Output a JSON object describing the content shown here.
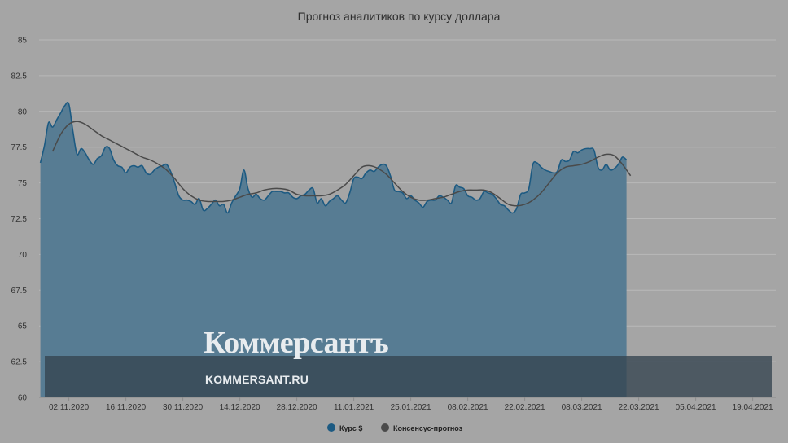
{
  "chart_data": {
    "type": "area",
    "title": "Прогноз аналитиков по курсу доллара",
    "xlabel": "",
    "ylabel": "",
    "ylim": [
      60,
      85
    ],
    "yticks": [
      "60",
      "62.5",
      "65",
      "67.5",
      "70",
      "72.5",
      "75",
      "77.5",
      "80",
      "82.5",
      "85"
    ],
    "xticks": [
      {
        "label": "02.11.2020",
        "x": 6
      },
      {
        "label": "16.11.2020",
        "x": 20
      },
      {
        "label": "30.11.2020",
        "x": 34
      },
      {
        "label": "14.12.2020",
        "x": 48
      },
      {
        "label": "28.12.2020",
        "x": 62
      },
      {
        "label": "11.01.2021",
        "x": 76
      },
      {
        "label": "25.01.2021",
        "x": 90
      },
      {
        "label": "08.02.2021",
        "x": 104
      },
      {
        "label": "22.02.2021",
        "x": 118
      },
      {
        "label": "08.03.2021",
        "x": 132
      },
      {
        "label": "22.03.2021",
        "x": 146
      },
      {
        "label": "05.04.2021",
        "x": 160
      },
      {
        "label": "19.04.2021",
        "x": 174
      }
    ],
    "grid": true,
    "legend_position": "bottom",
    "series": [
      {
        "name": "Курс $",
        "style": "area",
        "color": "#1c5a82",
        "points": [
          [
            -1,
            76.4
          ],
          [
            0,
            77.6
          ],
          [
            1,
            79.2
          ],
          [
            2,
            78.9
          ],
          [
            3,
            79.4
          ],
          [
            4,
            79.9
          ],
          [
            5,
            80.4
          ],
          [
            6,
            80.5
          ],
          [
            7,
            78.6
          ],
          [
            8,
            77.0
          ],
          [
            9,
            77.4
          ],
          [
            10,
            77.1
          ],
          [
            11,
            76.6
          ],
          [
            12,
            76.3
          ],
          [
            13,
            76.7
          ],
          [
            14,
            76.9
          ],
          [
            15,
            77.5
          ],
          [
            16,
            77.4
          ],
          [
            17,
            76.6
          ],
          [
            18,
            76.2
          ],
          [
            19,
            76.1
          ],
          [
            20,
            75.7
          ],
          [
            21,
            76.1
          ],
          [
            22,
            76.2
          ],
          [
            23,
            76.1
          ],
          [
            24,
            76.2
          ],
          [
            25,
            75.7
          ],
          [
            26,
            75.6
          ],
          [
            27,
            75.9
          ],
          [
            28,
            76.1
          ],
          [
            29,
            76.2
          ],
          [
            30,
            76.3
          ],
          [
            31,
            75.8
          ],
          [
            32,
            75.0
          ],
          [
            33,
            74.1
          ],
          [
            34,
            73.8
          ],
          [
            35,
            73.8
          ],
          [
            36,
            73.7
          ],
          [
            37,
            73.5
          ],
          [
            38,
            73.9
          ],
          [
            39,
            73.1
          ],
          [
            40,
            73.2
          ],
          [
            41,
            73.5
          ],
          [
            42,
            73.8
          ],
          [
            43,
            73.4
          ],
          [
            44,
            73.5
          ],
          [
            45,
            72.9
          ],
          [
            46,
            73.6
          ],
          [
            47,
            74.1
          ],
          [
            48,
            74.6
          ],
          [
            49,
            75.9
          ],
          [
            50,
            74.6
          ],
          [
            51,
            74.0
          ],
          [
            52,
            74.2
          ],
          [
            53,
            73.9
          ],
          [
            54,
            73.8
          ],
          [
            55,
            74.1
          ],
          [
            56,
            74.4
          ],
          [
            57,
            74.4
          ],
          [
            58,
            74.4
          ],
          [
            59,
            74.3
          ],
          [
            60,
            74.3
          ],
          [
            61,
            74.0
          ],
          [
            62,
            73.9
          ],
          [
            63,
            74.1
          ],
          [
            64,
            74.2
          ],
          [
            65,
            74.5
          ],
          [
            66,
            74.6
          ],
          [
            67,
            73.6
          ],
          [
            68,
            73.9
          ],
          [
            69,
            73.4
          ],
          [
            70,
            73.7
          ],
          [
            71,
            73.9
          ],
          [
            72,
            74.1
          ],
          [
            73,
            73.8
          ],
          [
            74,
            73.6
          ],
          [
            75,
            74.3
          ],
          [
            76,
            75.3
          ],
          [
            77,
            75.4
          ],
          [
            78,
            75.3
          ],
          [
            79,
            75.7
          ],
          [
            80,
            75.9
          ],
          [
            81,
            75.8
          ],
          [
            82,
            76.1
          ],
          [
            83,
            76.3
          ],
          [
            84,
            76.2
          ],
          [
            85,
            75.5
          ],
          [
            86,
            74.5
          ],
          [
            87,
            74.4
          ],
          [
            88,
            74.3
          ],
          [
            89,
            73.9
          ],
          [
            90,
            74.1
          ],
          [
            91,
            73.8
          ],
          [
            92,
            73.6
          ],
          [
            93,
            73.3
          ],
          [
            94,
            73.7
          ],
          [
            95,
            73.8
          ],
          [
            96,
            73.8
          ],
          [
            97,
            74.1
          ],
          [
            98,
            74.0
          ],
          [
            99,
            73.8
          ],
          [
            100,
            73.6
          ],
          [
            101,
            74.8
          ],
          [
            102,
            74.7
          ],
          [
            103,
            74.6
          ],
          [
            104,
            74.1
          ],
          [
            105,
            74.0
          ],
          [
            106,
            73.8
          ],
          [
            107,
            73.9
          ],
          [
            108,
            74.4
          ],
          [
            109,
            74.3
          ],
          [
            110,
            74.2
          ],
          [
            111,
            73.9
          ],
          [
            112,
            73.5
          ],
          [
            113,
            73.4
          ],
          [
            114,
            73.1
          ],
          [
            115,
            72.9
          ],
          [
            116,
            73.2
          ],
          [
            117,
            74.2
          ],
          [
            118,
            74.3
          ],
          [
            119,
            74.6
          ],
          [
            120,
            76.3
          ],
          [
            121,
            76.4
          ],
          [
            122,
            76.1
          ],
          [
            123,
            75.9
          ],
          [
            124,
            75.8
          ],
          [
            125,
            75.7
          ],
          [
            126,
            75.8
          ],
          [
            127,
            76.6
          ],
          [
            128,
            76.5
          ],
          [
            129,
            76.6
          ],
          [
            130,
            77.2
          ],
          [
            131,
            77.1
          ],
          [
            132,
            77.3
          ],
          [
            133,
            77.4
          ],
          [
            134,
            77.4
          ],
          [
            135,
            77.3
          ],
          [
            136,
            76.1
          ],
          [
            137,
            75.9
          ],
          [
            138,
            76.3
          ],
          [
            139,
            75.9
          ],
          [
            140,
            76.0
          ],
          [
            141,
            76.3
          ],
          [
            142,
            76.8
          ],
          [
            143,
            76.6
          ]
        ]
      },
      {
        "name": "Консенсус-прогноз",
        "style": "line",
        "color": "#4a4a4a",
        "points": [
          [
            2,
            77.2
          ],
          [
            4,
            78.4
          ],
          [
            6,
            79.1
          ],
          [
            8,
            79.3
          ],
          [
            10,
            79.1
          ],
          [
            12,
            78.7
          ],
          [
            14,
            78.3
          ],
          [
            16,
            78.0
          ],
          [
            18,
            77.7
          ],
          [
            20,
            77.4
          ],
          [
            22,
            77.1
          ],
          [
            24,
            76.8
          ],
          [
            26,
            76.6
          ],
          [
            28,
            76.3
          ],
          [
            30,
            75.9
          ],
          [
            32,
            75.3
          ],
          [
            34,
            74.6
          ],
          [
            36,
            74.1
          ],
          [
            38,
            73.8
          ],
          [
            40,
            73.7
          ],
          [
            42,
            73.7
          ],
          [
            44,
            73.7
          ],
          [
            46,
            73.8
          ],
          [
            48,
            74.0
          ],
          [
            50,
            74.2
          ],
          [
            52,
            74.3
          ],
          [
            54,
            74.5
          ],
          [
            56,
            74.6
          ],
          [
            58,
            74.6
          ],
          [
            60,
            74.5
          ],
          [
            62,
            74.2
          ],
          [
            64,
            74.1
          ],
          [
            66,
            74.1
          ],
          [
            68,
            74.1
          ],
          [
            70,
            74.2
          ],
          [
            72,
            74.5
          ],
          [
            74,
            74.9
          ],
          [
            76,
            75.5
          ],
          [
            78,
            76.1
          ],
          [
            80,
            76.2
          ],
          [
            82,
            76.0
          ],
          [
            84,
            75.6
          ],
          [
            86,
            75.0
          ],
          [
            88,
            74.4
          ],
          [
            90,
            74.0
          ],
          [
            92,
            73.8
          ],
          [
            94,
            73.8
          ],
          [
            96,
            73.9
          ],
          [
            98,
            74.0
          ],
          [
            100,
            74.2
          ],
          [
            102,
            74.4
          ],
          [
            104,
            74.5
          ],
          [
            106,
            74.5
          ],
          [
            108,
            74.5
          ],
          [
            110,
            74.3
          ],
          [
            112,
            73.9
          ],
          [
            114,
            73.5
          ],
          [
            116,
            73.4
          ],
          [
            118,
            73.5
          ],
          [
            120,
            73.8
          ],
          [
            122,
            74.3
          ],
          [
            124,
            75.0
          ],
          [
            126,
            75.7
          ],
          [
            128,
            76.1
          ],
          [
            130,
            76.2
          ],
          [
            132,
            76.3
          ],
          [
            134,
            76.5
          ],
          [
            136,
            76.8
          ],
          [
            138,
            77.0
          ],
          [
            140,
            76.9
          ],
          [
            142,
            76.3
          ],
          [
            144,
            75.5
          ]
        ]
      }
    ]
  },
  "watermark": {
    "brand": "Коммерсантъ",
    "url": "KOMMERSANT.RU"
  }
}
